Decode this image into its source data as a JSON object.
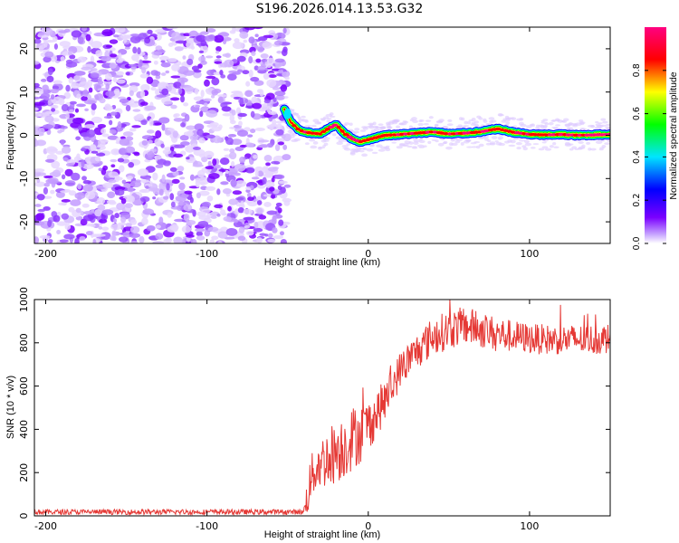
{
  "title": "S196.2026.014.13.53.G32",
  "chart_data": [
    {
      "type": "heatmap",
      "description_free": true,
      "xlabel": "Height of straight line (km)",
      "ylabel": "Frequency (Hz)",
      "xlim": [
        -207,
        150
      ],
      "ylim": [
        -25,
        25
      ],
      "xticks": [
        -200,
        -100,
        0,
        100
      ],
      "yticks": [
        -20,
        -10,
        0,
        10,
        20
      ],
      "noise_region_x": [
        -207,
        -52
      ],
      "signal_track": {
        "x": [
          -52,
          -48,
          -44,
          -40,
          -35,
          -30,
          -25,
          -20,
          -15,
          -10,
          -5,
          0,
          5,
          10,
          20,
          30,
          40,
          50,
          60,
          70,
          80,
          90,
          100,
          110,
          120,
          130,
          140,
          150
        ],
        "freq": [
          6,
          3,
          1.5,
          0.8,
          0.5,
          0.3,
          1.5,
          2.5,
          0.5,
          -0.8,
          -1.5,
          -1,
          -0.5,
          0,
          0.2,
          0.5,
          0.8,
          0.3,
          0.5,
          0.8,
          1.5,
          0.7,
          0.2,
          0.1,
          0.2,
          0,
          0.1,
          0.2
        ]
      },
      "colorbar": {
        "label": "Normalized spectral amplitude",
        "range": [
          0,
          1
        ],
        "ticks": [
          "0.0",
          "0.2",
          "0.4",
          "0.6",
          "0.8"
        ],
        "colors": [
          "#ffffff",
          "#7a00ff",
          "#0000ff",
          "#00e5ff",
          "#00ff00",
          "#ffff00",
          "#ff0000",
          "#ff0080"
        ]
      }
    },
    {
      "type": "line",
      "xlabel": "Height of straight line (km)",
      "ylabel": "SNR (10 * v/v)",
      "xlim": [
        -207,
        150
      ],
      "ylim": [
        0,
        1000
      ],
      "xticks": [
        -200,
        -100,
        0,
        100
      ],
      "yticks": [
        0,
        200,
        400,
        600,
        800,
        1000
      ],
      "color": "#e53935",
      "envelope": {
        "x": [
          -207,
          -150,
          -100,
          -60,
          -40,
          -37,
          -36,
          -33,
          -30,
          -25,
          -20,
          -15,
          -10,
          -5,
          0,
          5,
          10,
          15,
          20,
          30,
          40,
          50,
          60,
          70,
          80,
          90,
          100,
          110,
          120,
          130,
          140,
          150
        ],
        "mean": [
          18,
          18,
          18,
          18,
          18,
          120,
          160,
          220,
          240,
          270,
          300,
          320,
          360,
          380,
          420,
          470,
          530,
          600,
          680,
          760,
          830,
          860,
          880,
          860,
          840,
          830,
          820,
          815,
          815,
          815,
          815,
          820
        ],
        "noise_amp": [
          12,
          12,
          12,
          12,
          12,
          110,
          100,
          120,
          120,
          140,
          150,
          150,
          150,
          140,
          120,
          110,
          100,
          90,
          85,
          85,
          90,
          90,
          90,
          85,
          80,
          75,
          70,
          70,
          70,
          70,
          70,
          70
        ]
      }
    }
  ]
}
